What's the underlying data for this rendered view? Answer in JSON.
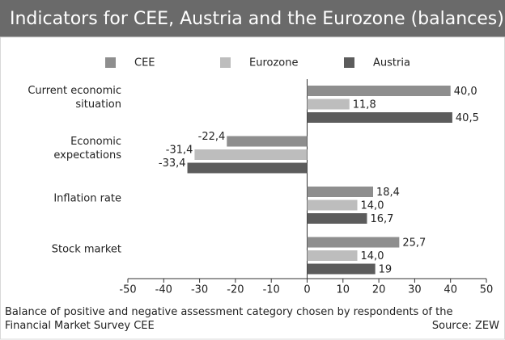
{
  "chart_data": {
    "type": "hbar",
    "title": "Indicators for CEE, Austria and the Eurozone (balances)",
    "categories": [
      "Current economic situation",
      "Economic expectations",
      "Inflation rate",
      "Stock market"
    ],
    "series": [
      {
        "name": "CEE",
        "color": "#8e8e8e",
        "values": [
          40.0,
          -22.4,
          18.4,
          25.7
        ],
        "value_labels": [
          "40,0",
          "-22,4",
          "18,4",
          "25,7"
        ]
      },
      {
        "name": "Eurozone",
        "color": "#bdbdbd",
        "values": [
          11.8,
          -31.4,
          14.0,
          14.0
        ],
        "value_labels": [
          "11,8",
          "-31,4",
          "14,0",
          "14,0"
        ]
      },
      {
        "name": "Austria",
        "color": "#5c5c5c",
        "values": [
          40.5,
          -33.4,
          16.7,
          19
        ],
        "value_labels": [
          "40,5",
          "-33,4",
          "16,7",
          "19"
        ]
      }
    ],
    "xlim": [
      -50,
      50
    ],
    "xticks": [
      -50,
      -40,
      -30,
      -20,
      -10,
      0,
      10,
      20,
      30,
      40,
      50
    ],
    "note": "Balance of positive and negative assessment category chosen by respondents of the Financial Market Survey CEE",
    "source": "Source: ZEW"
  }
}
